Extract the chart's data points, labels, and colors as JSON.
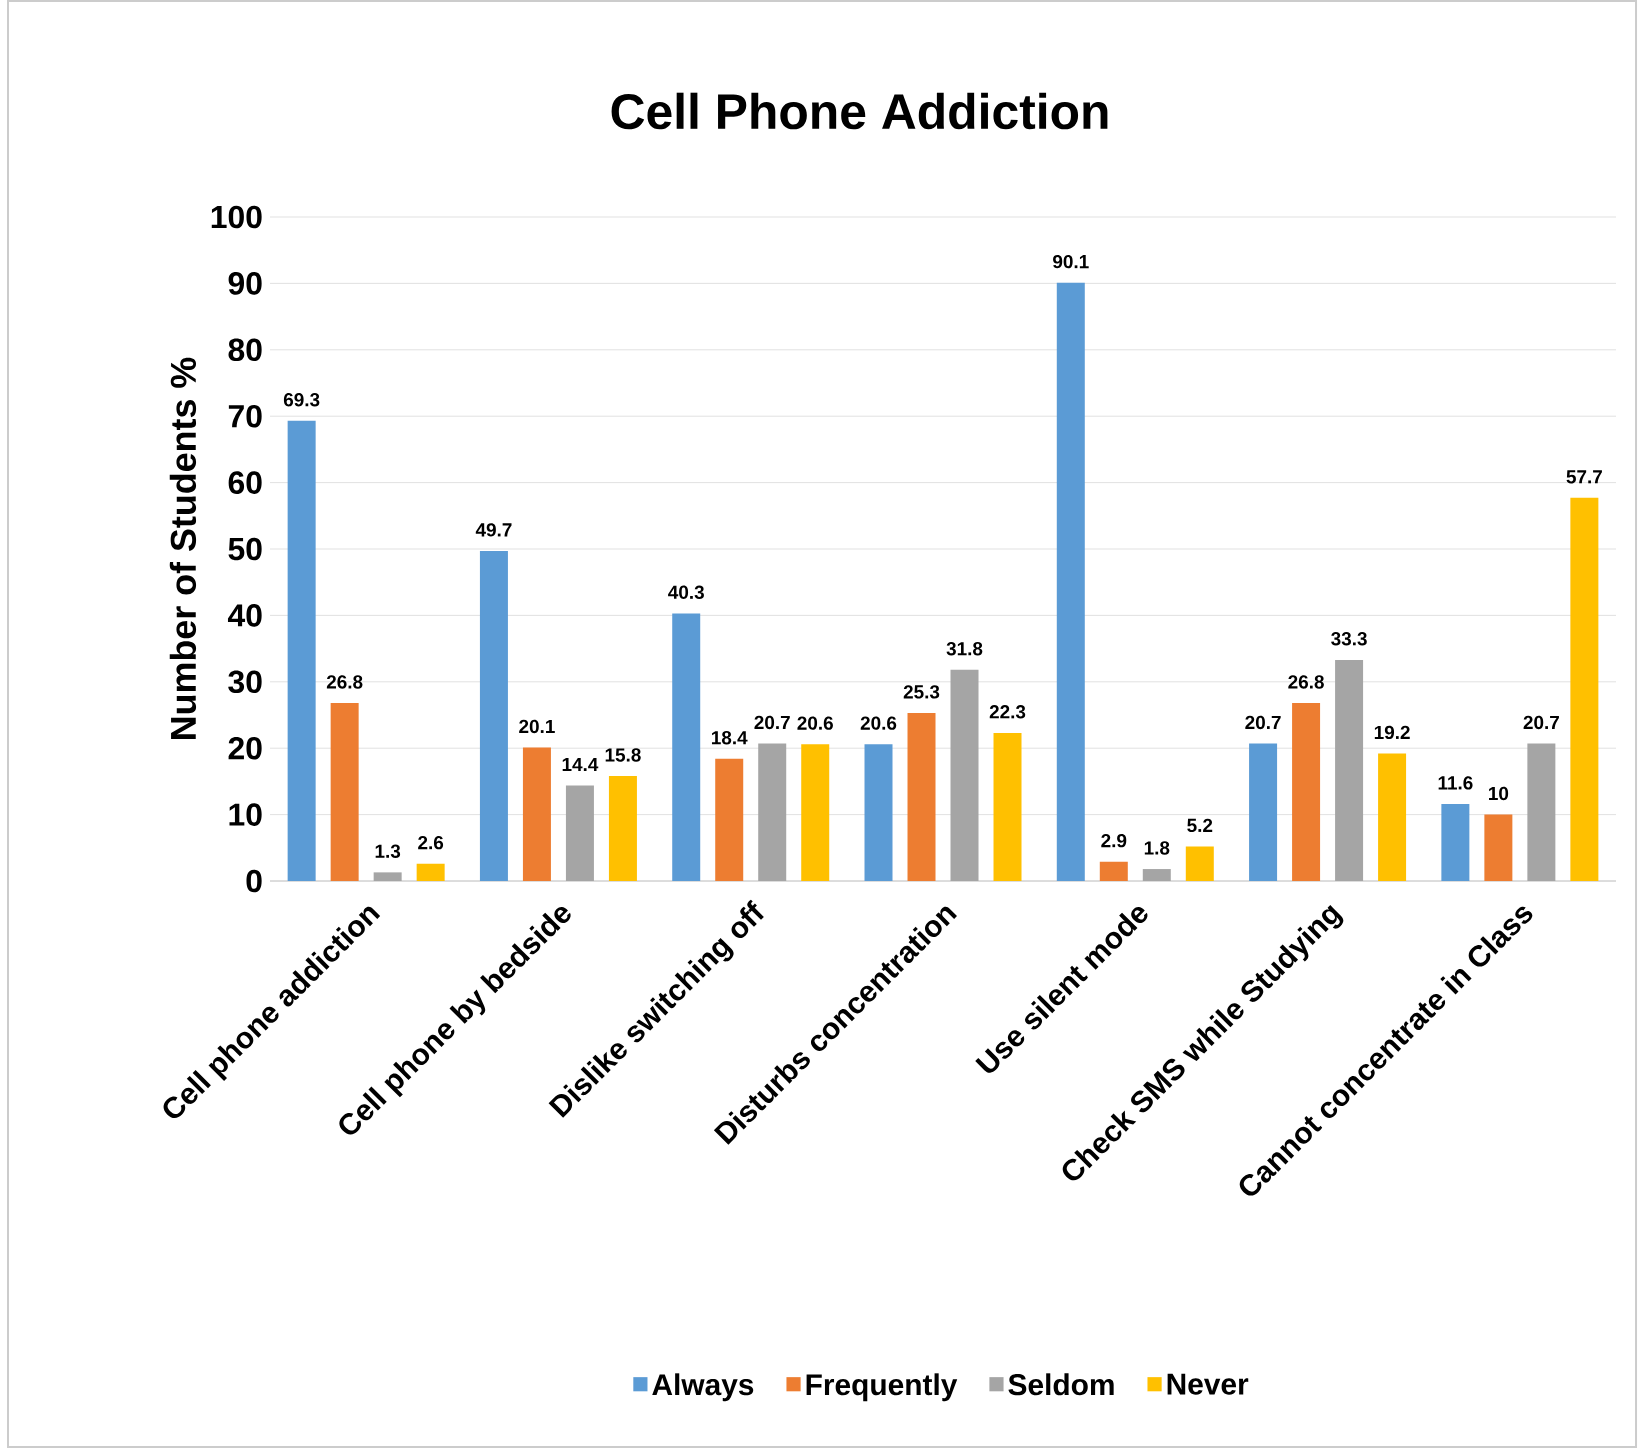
{
  "chart_data": {
    "type": "bar",
    "title": "Cell Phone Addiction",
    "ylabel": "Number of Students %",
    "categories": [
      "Cell phone addiction",
      "Cell phone by bedside",
      "Dislike switching off",
      "Disturbs concentration",
      "Use silent mode",
      "Check SMS while Studying",
      "Cannot concentrate in Class"
    ],
    "series": [
      {
        "name": "Always",
        "color": "#5b9bd5",
        "values": [
          69.3,
          49.7,
          40.3,
          20.6,
          90.1,
          20.7,
          11.6
        ]
      },
      {
        "name": "Frequently",
        "color": "#ed7d31",
        "values": [
          26.8,
          20.1,
          18.4,
          25.3,
          2.9,
          26.8,
          10
        ]
      },
      {
        "name": "Seldom",
        "color": "#a5a5a5",
        "values": [
          1.3,
          14.4,
          20.7,
          31.8,
          1.8,
          33.3,
          20.7
        ]
      },
      {
        "name": "Never",
        "color": "#ffc000",
        "values": [
          2.6,
          15.8,
          20.6,
          22.3,
          5.2,
          19.2,
          57.7
        ]
      }
    ],
    "ylim": [
      0,
      100
    ],
    "yticks": [
      0,
      10,
      20,
      30,
      40,
      50,
      60,
      70,
      80,
      90,
      100
    ],
    "grid": "y",
    "legend": "bottom",
    "data_labels": true
  }
}
